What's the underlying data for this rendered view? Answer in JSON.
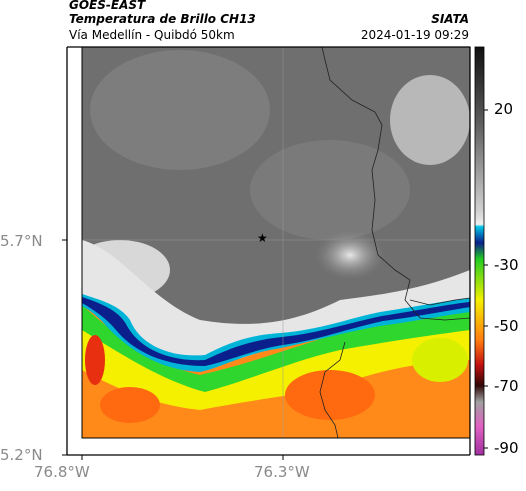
{
  "header": {
    "satellite": "GOES-EAST",
    "product": "Temperatura de Brillo CH13",
    "region": "Vía Medellín - Quibdó 50km",
    "agency": "SIATA",
    "timestamp": "2024-01-19 09:29"
  },
  "map": {
    "lat_ticks": [
      "5.7°N",
      "5.2°N"
    ],
    "lon_ticks": [
      "76.8°W",
      "76.3°W"
    ],
    "marker": {
      "symbol": "★",
      "name": "star-marker"
    }
  },
  "colorbar": {
    "ticks": [
      "20",
      "-30",
      "-50",
      "-70",
      "-90"
    ],
    "colors": {
      "warm_top": "#1a1a1a",
      "gray_mid": "#9a9a9a",
      "white": "#f2f2f2",
      "cyan": "#00b4d8",
      "blue": "#0a1f8c",
      "green": "#2ed62e",
      "yellow": "#f4f000",
      "orange": "#ff8a1a",
      "red": "#c01010",
      "dark": "#2a0a0a",
      "pink": "#e060c0"
    }
  }
}
